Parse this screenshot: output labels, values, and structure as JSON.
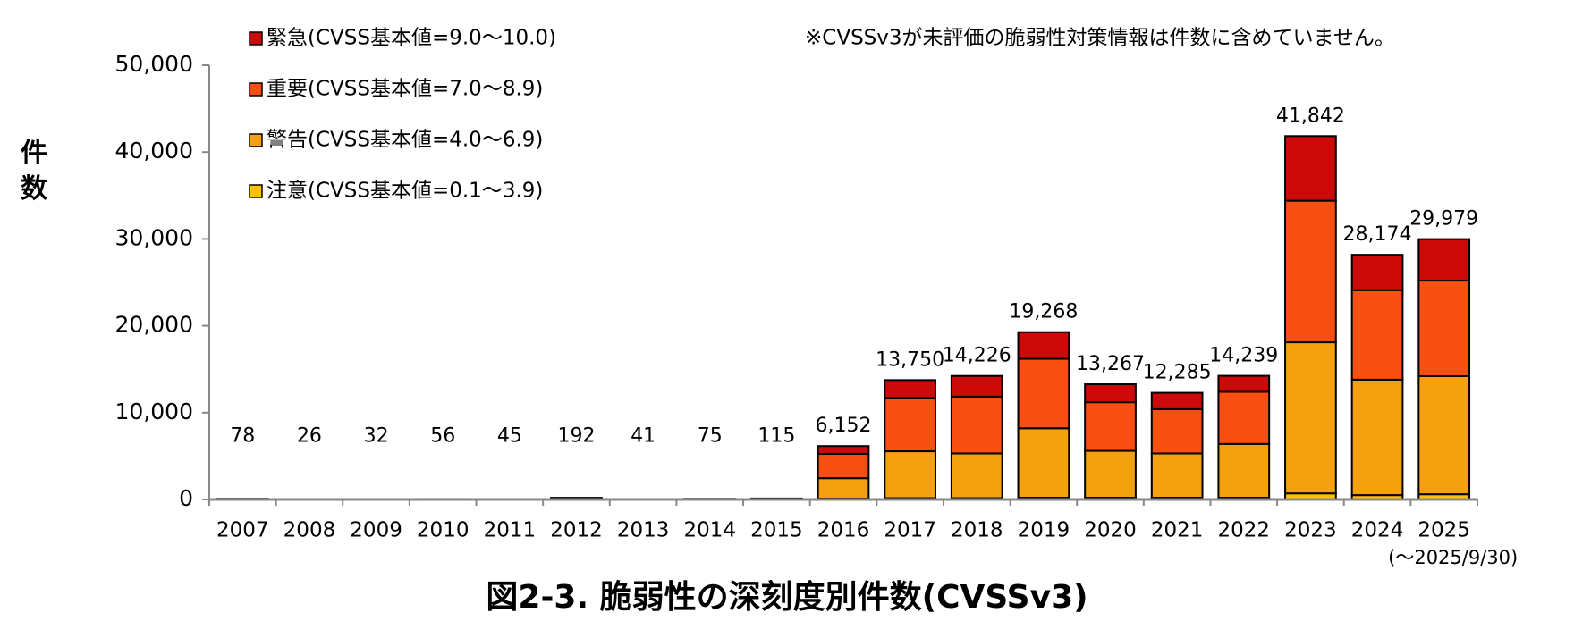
{
  "chart_data": {
    "type": "stacked_bar",
    "title": "図2-3. 脆弱性の深刻度別件数(CVSSv3)",
    "y_label": "件数",
    "note": "※CVSSv3が未評価の脆弱性対策情報は件数に含めていません。",
    "x_note": "(～2025/9/30)",
    "categories": [
      "2007",
      "2008",
      "2009",
      "2010",
      "2011",
      "2012",
      "2013",
      "2014",
      "2015",
      "2016",
      "2017",
      "2018",
      "2019",
      "2020",
      "2021",
      "2022",
      "2023",
      "2024",
      "2025"
    ],
    "series": [
      {
        "name": "注意(CVSS基本値=0.1～3.9)",
        "color": "#ffc000",
        "values": [
          2,
          1,
          1,
          1,
          1,
          3,
          1,
          1,
          2,
          100,
          150,
          150,
          200,
          200,
          200,
          200,
          700,
          500,
          600
        ]
      },
      {
        "name": "警告(CVSS基本値=4.0～6.9)",
        "color": "#f5a00f",
        "values": [
          40,
          12,
          15,
          28,
          22,
          90,
          20,
          35,
          55,
          2350,
          5400,
          5150,
          8000,
          5400,
          5100,
          6200,
          17400,
          13300,
          13600
        ]
      },
      {
        "name": "重要(CVSS基本値=7.0～8.9)",
        "color": "#fa4f12",
        "values": [
          26,
          9,
          12,
          20,
          16,
          70,
          14,
          28,
          42,
          2800,
          6150,
          6550,
          8000,
          5600,
          5100,
          6000,
          16300,
          10300,
          11000
        ]
      },
      {
        "name": "緊急(CVSS基本値=9.0～10.0)",
        "color": "#cc0a0a",
        "values": [
          10,
          4,
          4,
          7,
          6,
          29,
          6,
          11,
          16,
          902,
          2050,
          2376,
          3068,
          2067,
          1885,
          1839,
          7442,
          4074,
          4779
        ]
      }
    ],
    "totals": [
      78,
      26,
      32,
      56,
      45,
      192,
      41,
      75,
      115,
      6152,
      13750,
      14226,
      19268,
      13267,
      12285,
      14239,
      41842,
      28174,
      29979
    ],
    "total_labels": [
      "78",
      "26",
      "32",
      "56",
      "45",
      "192",
      "41",
      "75",
      "115",
      "6,152",
      "13,750",
      "14,226",
      "19,268",
      "13,267",
      "12,285",
      "14,239",
      "41,842",
      "28,174",
      "29,979"
    ],
    "ylim": [
      0,
      50000
    ],
    "yticks": [
      0,
      {
        "value": 10000,
        "label": "10,000"
      },
      {
        "value": 20000,
        "label": "20,000"
      },
      {
        "value": 30000,
        "label": "30,000"
      },
      {
        "value": 40000,
        "label": "40,000"
      },
      {
        "value": 50000,
        "label": "50,000"
      }
    ]
  }
}
